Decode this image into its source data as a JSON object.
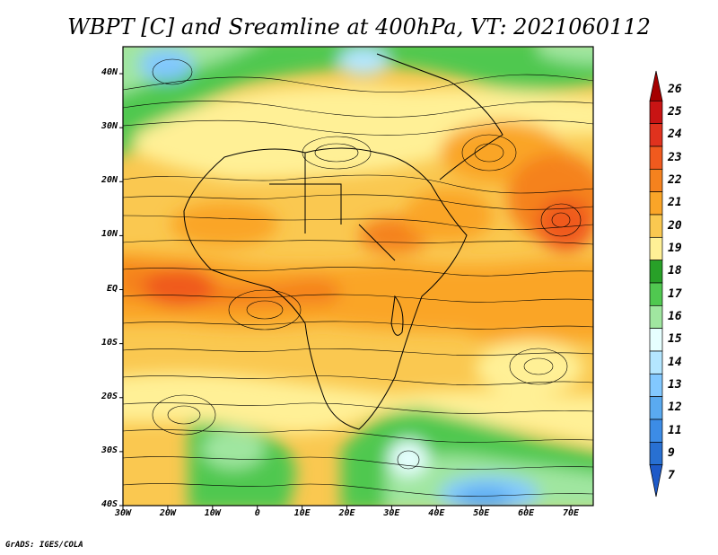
{
  "title": "WBPT [C] and Sreamline at 400hPa, VT: 2021060112",
  "credit": "GrADS: IGES/COLA",
  "map": {
    "lat_labels": [
      "40N",
      "30N",
      "20N",
      "10N",
      "EQ",
      "10S",
      "20S",
      "30S",
      "40S"
    ],
    "lat_values": [
      40,
      30,
      20,
      10,
      0,
      -10,
      -20,
      -30,
      -40
    ],
    "lon_labels": [
      "30W",
      "20W",
      "10W",
      "0",
      "10E",
      "20E",
      "30E",
      "40E",
      "50E",
      "60E",
      "70E"
    ],
    "lon_values": [
      -30,
      -20,
      -10,
      0,
      10,
      20,
      30,
      40,
      50,
      60,
      70
    ],
    "lon_range": [
      -30,
      75
    ],
    "lat_range": [
      -40,
      45
    ]
  },
  "colorbar": {
    "labels": [
      "26",
      "25",
      "24",
      "23",
      "22",
      "21",
      "20",
      "19",
      "18",
      "17",
      "16",
      "15",
      "14",
      "13",
      "12",
      "11",
      "9",
      "7"
    ],
    "colors": [
      "#a50000",
      "#c81414",
      "#e0321e",
      "#f05a1e",
      "#f5821e",
      "#faa528",
      "#fac850",
      "#fff096",
      "#28a028",
      "#50c850",
      "#a0e6a0",
      "#e6ffff",
      "#b4e6ff",
      "#82c8ff",
      "#5aaaf0",
      "#3c8ce6",
      "#2870d2",
      "#1e5ac8"
    ]
  },
  "fields": {
    "blob_colors": {
      "c17": "#50c850",
      "c16": "#a0e6a0",
      "c15": "#e6ffff",
      "c14": "#b4e6ff",
      "c13": "#82c8ff",
      "c12": "#5aaaf0",
      "c19": "#fff096",
      "c20": "#fac850",
      "c21": "#faa528",
      "c22": "#f5821e",
      "c23": "#f05a1e"
    }
  }
}
